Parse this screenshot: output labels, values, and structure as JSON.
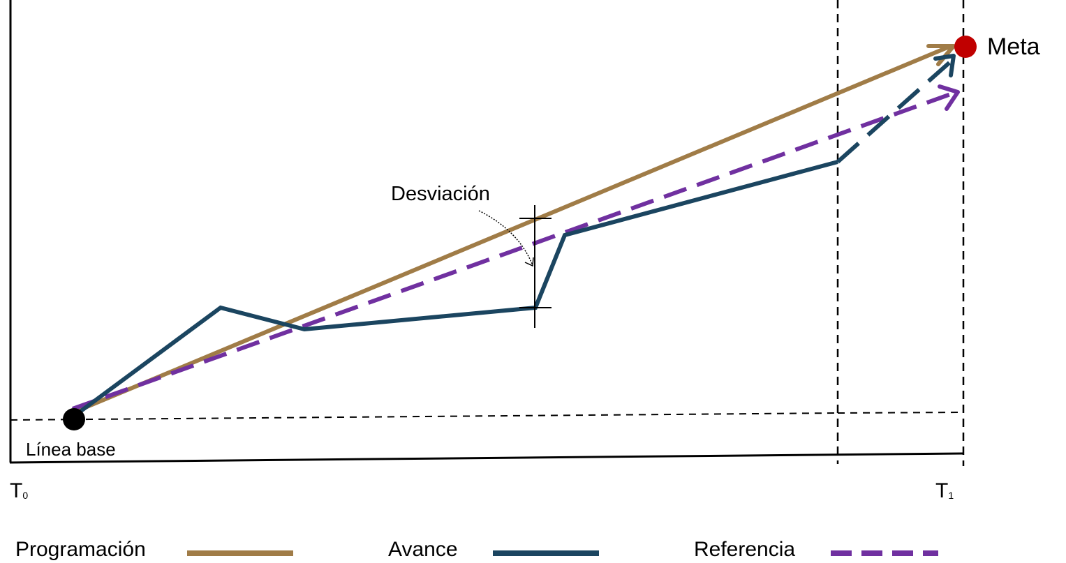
{
  "labels": {
    "meta": "Meta",
    "baseline": "Línea base",
    "deviation": "Desviación",
    "t0_letter": "T",
    "t0_sub": "0",
    "t1_letter": "T",
    "t1_sub": "1"
  },
  "legend": [
    {
      "label": "Programación",
      "style": "solid",
      "color": "#A07C47"
    },
    {
      "label": "Avance",
      "style": "solid",
      "color": "#1B4560"
    },
    {
      "label": "Referencia",
      "style": "dashed",
      "color": "#7030A0"
    }
  ],
  "colors": {
    "programacion": "#A07C47",
    "avance": "#1B4560",
    "referencia": "#7030A0",
    "meta_point": "#C00000",
    "baseline_point": "#000000",
    "axis": "#000000"
  }
}
